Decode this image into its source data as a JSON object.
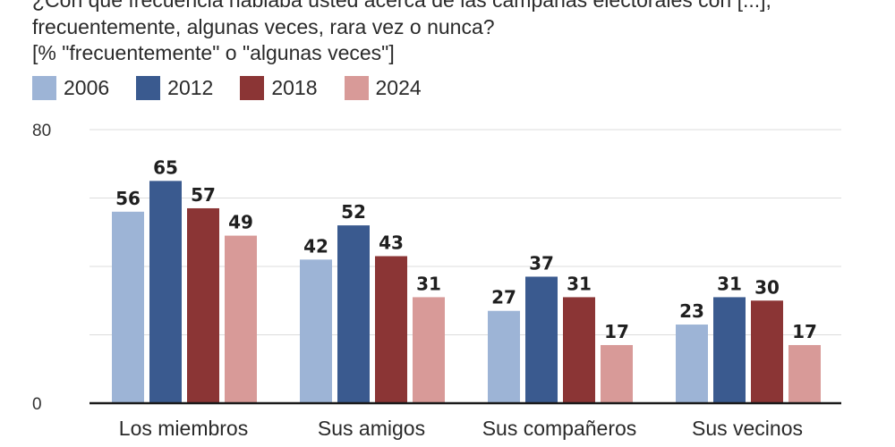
{
  "header": {
    "line1": "¿Con qué frecuencia hablaba usted acerca de las campañas electorales con [...],",
    "line2": "frecuentemente, algunas veces, rara vez o nunca?",
    "line3": "[% \"frecuentemente\" o \"algunas veces\"]"
  },
  "chart_data": {
    "type": "bar",
    "categories": [
      "Los miembros de su familia",
      "Sus amigos",
      "Sus compañeros de trabajo",
      "Sus vecinos"
    ],
    "category_labels_visible": [
      "Los miembros",
      "Sus amigos",
      "Sus compañeros",
      "Sus vecinos"
    ],
    "series": [
      {
        "name": "2006",
        "color": "#9db4d6",
        "values": [
          56,
          42,
          27,
          23
        ]
      },
      {
        "name": "2012",
        "color": "#3a5a8f",
        "values": [
          65,
          52,
          37,
          31
        ]
      },
      {
        "name": "2018",
        "color": "#8b3535",
        "values": [
          57,
          43,
          31,
          30
        ]
      },
      {
        "name": "2024",
        "color": "#d89a98",
        "values": [
          49,
          31,
          17,
          17
        ]
      }
    ],
    "ylim": [
      0,
      80
    ],
    "y_tick_labels": [
      "0",
      "80"
    ],
    "grid": true,
    "legend_position": "top-left"
  }
}
